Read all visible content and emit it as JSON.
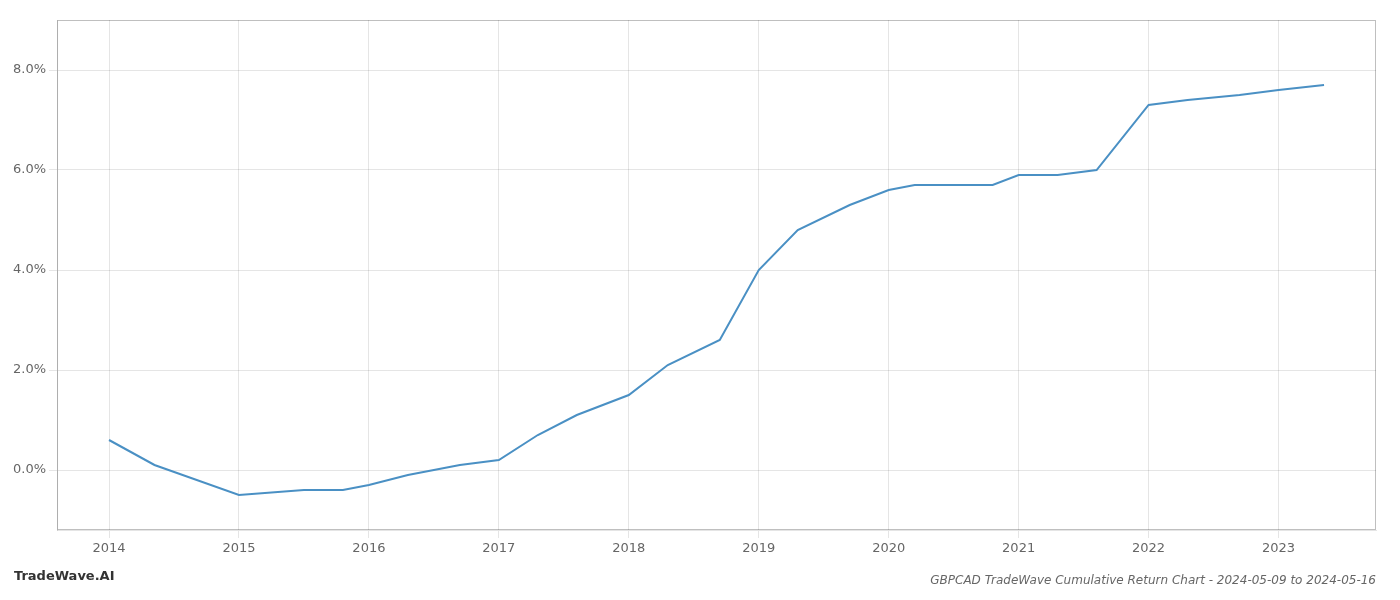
{
  "chart_data": {
    "type": "line",
    "title": "GBPCAD TradeWave Cumulative Return Chart - 2024-05-09 to 2024-05-16",
    "annotations": [
      "TradeWave.AI"
    ],
    "x": [
      2014.0,
      2014.35,
      2015.0,
      2015.5,
      2015.8,
      2016.0,
      2016.3,
      2016.7,
      2017.0,
      2017.3,
      2017.6,
      2018.0,
      2018.3,
      2018.7,
      2019.0,
      2019.3,
      2019.7,
      2020.0,
      2020.2,
      2020.5,
      2020.8,
      2021.0,
      2021.3,
      2021.6,
      2022.0,
      2022.3,
      2022.7,
      2023.0,
      2023.35
    ],
    "values": [
      0.006,
      0.001,
      -0.005,
      -0.004,
      -0.004,
      -0.003,
      -0.001,
      0.001,
      0.002,
      0.007,
      0.011,
      0.015,
      0.021,
      0.026,
      0.04,
      0.048,
      0.053,
      0.056,
      0.057,
      0.057,
      0.057,
      0.059,
      0.059,
      0.06,
      0.073,
      0.074,
      0.075,
      0.076,
      0.077
    ],
    "color": "#4a90c4",
    "xlim": [
      2013.6,
      2023.75
    ],
    "ylim": [
      -0.012,
      0.09
    ],
    "xticks": [
      2014,
      2015,
      2016,
      2017,
      2018,
      2019,
      2020,
      2021,
      2022,
      2023
    ],
    "yticks": [
      {
        "value": 0.0,
        "label": "0.0%"
      },
      {
        "value": 0.02,
        "label": "2.0%"
      },
      {
        "value": 0.04,
        "label": "4.0%"
      },
      {
        "value": 0.06,
        "label": "6.0%"
      },
      {
        "value": 0.08,
        "label": "8.0%"
      }
    ],
    "grid": true
  }
}
